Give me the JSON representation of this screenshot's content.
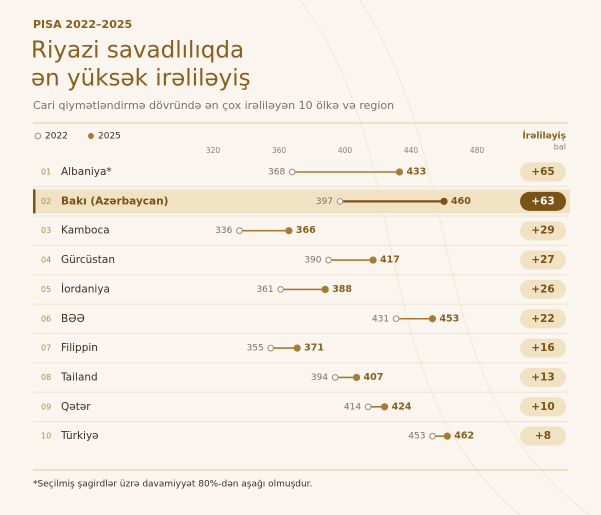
{
  "chart_data": {
    "type": "dumbbell",
    "kicker": "PISA 2022–2025",
    "title": [
      "Riyazi savadlılıqda",
      "ən yüksək irəliləyiş"
    ],
    "subtitle": "Cari qiymətləndirmə dövründə ən çox irəliləyən 10 ölkə və region",
    "ranks": [
      "01",
      "02",
      "03",
      "04",
      "05",
      "06",
      "07",
      "08",
      "09",
      "10"
    ],
    "categories": [
      "Albaniya*",
      "Bakı (Azərbaycan)",
      "Kamboca",
      "Gürcüstan",
      "İordaniya",
      "BƏƏ",
      "Filippin",
      "Tailand",
      "Qətər",
      "Türkiyə"
    ],
    "series": [
      {
        "name": "2022",
        "color": "#a89a86",
        "values": [
          368,
          397,
          336,
          390,
          361,
          431,
          355,
          394,
          414,
          453
        ]
      },
      {
        "name": "2025",
        "color": "#a87a35",
        "values": [
          433,
          460,
          366,
          417,
          388,
          453,
          371,
          407,
          424,
          462
        ]
      }
    ],
    "change": {
      "name": "İrəliləyiş",
      "unit": "bal",
      "values": [
        65,
        63,
        29,
        27,
        26,
        22,
        16,
        13,
        10,
        8
      ],
      "value_labels": [
        "+65",
        "+63",
        "+29",
        "+27",
        "+26",
        "+22",
        "+16",
        "+13",
        "+10",
        "+8"
      ]
    },
    "highlight": 1,
    "highlight_color": "#7a5316",
    "xlim": [
      300,
      500
    ],
    "xticks": [
      320,
      360,
      400,
      440,
      480
    ],
    "footnote": "*Seçilmiş şagirdlər üzrə davamiyyət 80%-dən aşağı olmuşdur."
  }
}
